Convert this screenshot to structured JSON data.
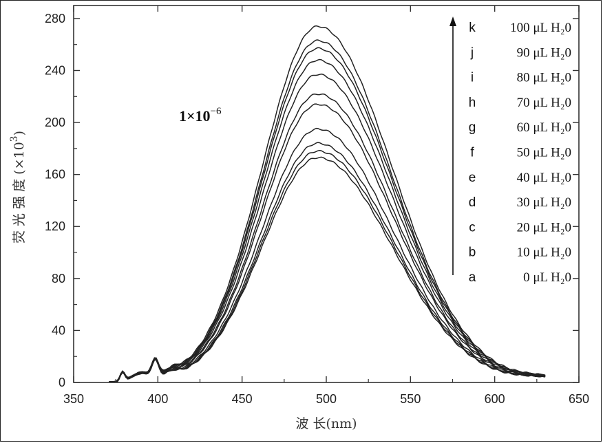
{
  "chart_data": {
    "type": "line",
    "xlabel": "波 长(nm)",
    "ylabel": "荧 光 强 度 (×10",
    "ylabel_exponent": "3",
    "ylabel_close": ")",
    "xlim": [
      350,
      650
    ],
    "ylim": [
      0,
      290
    ],
    "xticks": [
      350,
      400,
      450,
      500,
      550,
      600,
      650
    ],
    "yticks": [
      0,
      40,
      80,
      120,
      160,
      200,
      240,
      280
    ],
    "annotation": {
      "base": "1×10",
      "exponent": "−6"
    },
    "legend_position": "top-right",
    "legend_arrow": "up",
    "peak_wavelength": 495,
    "series": [
      {
        "name": "a",
        "label": "0 μL H₂0",
        "peak": 173
      },
      {
        "name": "b",
        "label": "10 μL H₂0",
        "peak": 178
      },
      {
        "name": "c",
        "label": "20 μL H₂0",
        "peak": 184
      },
      {
        "name": "d",
        "label": "30 μL H₂0",
        "peak": 195
      },
      {
        "name": "e",
        "label": "40 μL H₂0",
        "peak": 214
      },
      {
        "name": "f",
        "label": "50 μL H₂0",
        "peak": 222
      },
      {
        "name": "g",
        "label": "60 μL H₂0",
        "peak": 237
      },
      {
        "name": "h",
        "label": "70 μL H₂0",
        "peak": 248
      },
      {
        "name": "i",
        "label": "80 μL H₂0",
        "peak": 257
      },
      {
        "name": "j",
        "label": "90 μL H₂0",
        "peak": 263
      },
      {
        "name": "k",
        "label": "100 μL H₂0",
        "peak": 274
      }
    ]
  }
}
